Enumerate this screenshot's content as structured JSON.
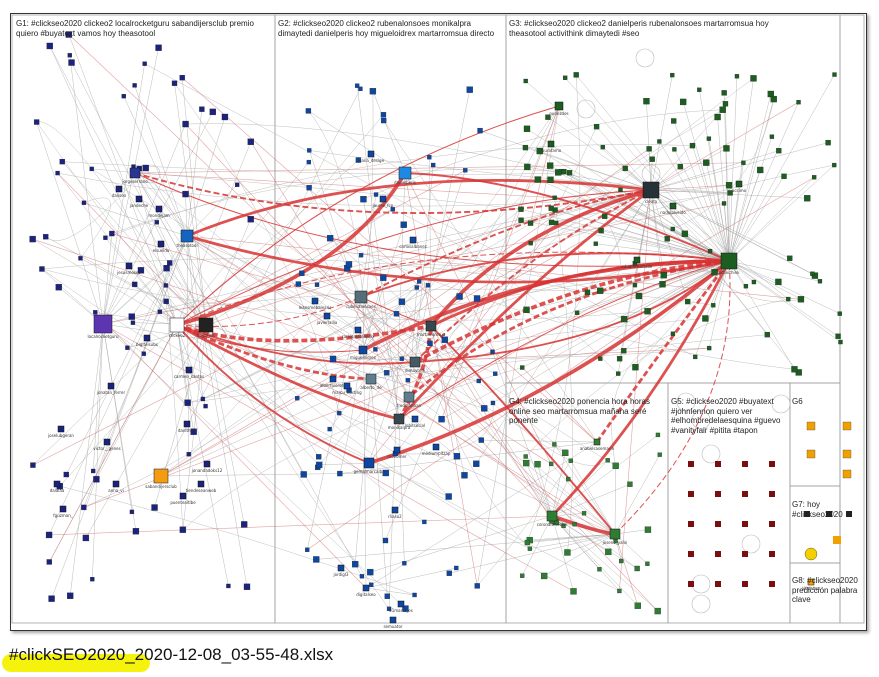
{
  "groups": [
    {
      "id": "G1",
      "label": "G1: #clickseo2020 clickeo2 localrocketguru sabandijersclub premio quiero #buyatext vamos hoy theasotool"
    },
    {
      "id": "G2",
      "label": "G2: #clickseo2020 clickeo2 rubenalonsoes monikalpra dimaytedi danielperis hoy migueloidrex martarromsua directo"
    },
    {
      "id": "G3",
      "label": "G3: #clickseo2020 clickeo2 danielperis rubenalonsoes martarromsua hoy theasotool activithink dimaytedi #seo"
    },
    {
      "id": "G4",
      "label": "G4: #clickseo2020 ponencia hora horas online seo martarromsua mañana seré ponente"
    },
    {
      "id": "G5",
      "label": "G5: #clickseo2020 #buyatext #johnlennon quiero ver #elhombredelaesquina #guevo #vanityfair #pitita #tapon"
    },
    {
      "id": "G6",
      "label": "G6"
    },
    {
      "id": "G7",
      "label": "G7: hoy #clickseo2020"
    },
    {
      "id": "G8",
      "label": "G8: #clickseo2020 predicción palabra clave"
    }
  ],
  "nodes": [
    {
      "name": "localrocketguru",
      "group": "G1"
    },
    {
      "name": "theasotool",
      "group": "G1"
    },
    {
      "name": "sabandijersclub",
      "group": "G1"
    },
    {
      "name": "jorgeserrano",
      "group": "G1"
    },
    {
      "name": "dailseo",
      "group": "G1"
    },
    {
      "name": "jandeche",
      "group": "G1"
    },
    {
      "name": "mondejam",
      "group": "G1"
    },
    {
      "name": "clickeo2",
      "group": "G1"
    },
    {
      "name": "buyatext",
      "group": "G1"
    },
    {
      "name": "bigitelsubs",
      "group": "G1"
    },
    {
      "name": "carmen_santos",
      "group": "G1"
    },
    {
      "name": "elsueldo",
      "group": "G1"
    },
    {
      "name": "jesusmoseo",
      "group": "G1"
    },
    {
      "name": "jonatan_ferrer",
      "group": "G1"
    },
    {
      "name": "joselubgeran",
      "group": "G1"
    },
    {
      "name": "victor__genes",
      "group": "G1"
    },
    {
      "name": "anna_vi",
      "group": "G1"
    },
    {
      "name": "fguzman_",
      "group": "G1"
    },
    {
      "name": "dalalaa",
      "group": "G1"
    },
    {
      "name": "danlthvis",
      "group": "G1"
    },
    {
      "name": "jonandadoks12",
      "group": "G1"
    },
    {
      "name": "tiendeseanweb",
      "group": "G1"
    },
    {
      "name": "puentealtlbe",
      "group": "G1"
    },
    {
      "name": "rubenalonsoes",
      "group": "G2"
    },
    {
      "name": "monikalpra",
      "group": "G2"
    },
    {
      "name": "dimaytedi",
      "group": "G2"
    },
    {
      "name": "danielperis",
      "group": "G2"
    },
    {
      "name": "migueloidrex",
      "group": "G2"
    },
    {
      "name": "martarromsua",
      "group": "G2"
    },
    {
      "name": "joana_design",
      "group": "G2"
    },
    {
      "name": "jaume_fcp",
      "group": "G2"
    },
    {
      "name": "carlosalbanez",
      "group": "G2"
    },
    {
      "name": "leansmebalearis",
      "group": "G2"
    },
    {
      "name": "javierlallia",
      "group": "G2"
    },
    {
      "name": "carlosalemendix",
      "group": "G2"
    },
    {
      "name": "albertiverseo",
      "group": "G2"
    },
    {
      "name": "marcu_hosting",
      "group": "G2"
    },
    {
      "name": "alberto_de",
      "group": "G2"
    },
    {
      "name": "fredolarlaan",
      "group": "G2"
    },
    {
      "name": "lobitsocial",
      "group": "G2"
    },
    {
      "name": "mediumpitzap",
      "group": "G2"
    },
    {
      "name": "monomer",
      "group": "G2"
    },
    {
      "name": "gemalmarcalba",
      "group": "G2"
    },
    {
      "name": "rliaso2",
      "group": "G2"
    },
    {
      "name": "jordigl3",
      "group": "G2"
    },
    {
      "name": "digitalseo",
      "group": "G2"
    },
    {
      "name": "51marta_es",
      "group": "G2"
    },
    {
      "name": "semuator",
      "group": "G2"
    },
    {
      "name": "activithink",
      "group": "G3"
    },
    {
      "name": "cleota",
      "group": "G3"
    },
    {
      "name": "nunezdes",
      "group": "G3"
    },
    {
      "name": "laurafamo",
      "group": "G3"
    },
    {
      "name": "acsimo",
      "group": "G3"
    },
    {
      "name": "nadolplusido",
      "group": "G3"
    },
    {
      "name": "eduardmartelar",
      "group": "G3"
    },
    {
      "name": "anabelsasemarin",
      "group": "G4"
    },
    {
      "name": "coronaltmester",
      "group": "G4"
    },
    {
      "name": "joseno_yalin",
      "group": "G4"
    },
    {
      "name": "alfalhttps",
      "group": "G7"
    }
  ],
  "caption": "#clickSEO2020_2020-12-08_03-55-48.xlsx"
}
